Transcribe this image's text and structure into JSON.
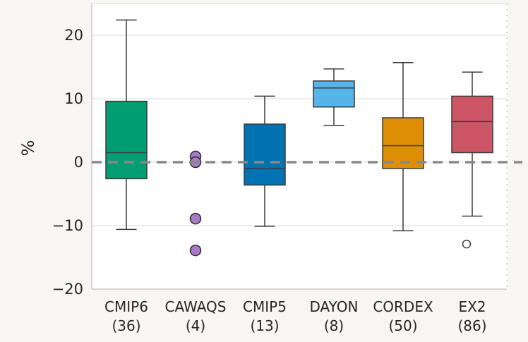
{
  "chart_data": {
    "type": "box",
    "ylabel": "%",
    "xlabel": "",
    "ylim": [
      -20,
      25
    ],
    "yticks": [
      -20,
      -10,
      0,
      10,
      20
    ],
    "grid": true,
    "reference_line": 0,
    "categories": [
      "CMIP6",
      "CAWAQS",
      "CMIP5",
      "DAYON",
      "CORDEX",
      "EX2"
    ],
    "counts": [
      "(36)",
      "(4)",
      "(13)",
      "(8)",
      "(50)",
      "(86)"
    ],
    "boxes": [
      {
        "name": "CMIP6",
        "color": "#029e73",
        "whisker_low": -10.6,
        "q1": -2.6,
        "median": 1.5,
        "q3": 9.6,
        "whisker_high": 22.4,
        "outliers": []
      },
      {
        "name": "CAWAQS",
        "color": "#a87bc7",
        "points": [
          0.9,
          0.0,
          -8.9,
          -13.9
        ]
      },
      {
        "name": "CMIP5",
        "color": "#0173b2",
        "whisker_low": -10.1,
        "q1": -3.6,
        "median": -1.0,
        "q3": 6.0,
        "whisker_high": 10.4,
        "outliers": []
      },
      {
        "name": "DAYON",
        "color": "#56b4e9",
        "whisker_low": 5.8,
        "q1": 8.7,
        "median": 11.7,
        "q3": 12.8,
        "whisker_high": 14.7,
        "outliers": []
      },
      {
        "name": "CORDEX",
        "color": "#de8f05",
        "whisker_low": -10.8,
        "q1": -1.0,
        "median": 2.6,
        "q3": 7.0,
        "whisker_high": 15.7,
        "outliers": []
      },
      {
        "name": "EX2",
        "color": "#cc5566",
        "whisker_low": -8.5,
        "q1": 1.5,
        "median": 6.4,
        "q3": 10.4,
        "whisker_high": 14.2,
        "outliers": [
          -12.9
        ]
      }
    ]
  }
}
